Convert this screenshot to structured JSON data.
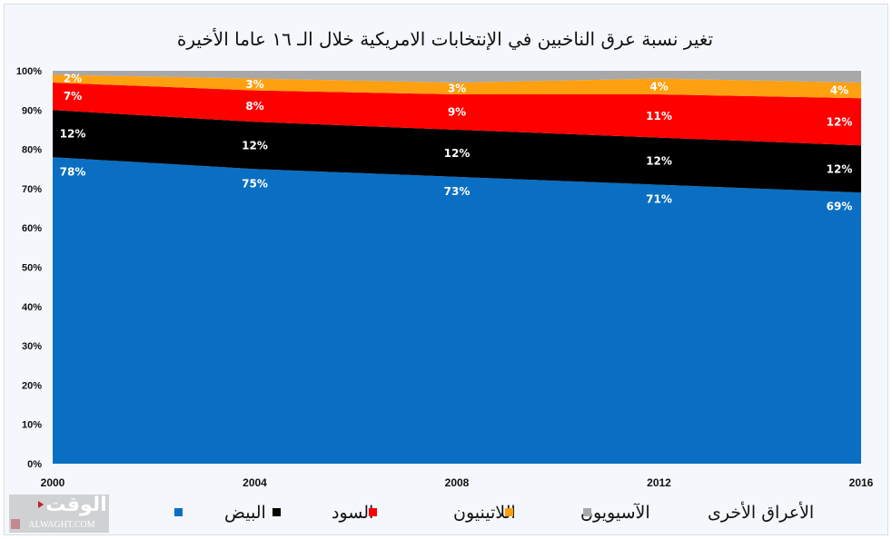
{
  "chart_data": {
    "type": "area",
    "stacked": "percent",
    "title": "تغير نسبة عرق الناخبين في الإنتخابات الامريكية خلال الـ ١٦ عاما الأخيرة",
    "x": [
      "2000",
      "2004",
      "2008",
      "2012",
      "2016"
    ],
    "ylim": [
      0,
      100
    ],
    "yticks": [
      "0%",
      "10%",
      "20%",
      "30%",
      "40%",
      "50%",
      "60%",
      "70%",
      "80%",
      "90%",
      "100%"
    ],
    "grid": false,
    "legend_position": "bottom",
    "series": [
      {
        "name": "البيض",
        "color": "#0a6fc2",
        "values": [
          78,
          75,
          73,
          71,
          69
        ],
        "labels": [
          "78%",
          "75%",
          "73%",
          "71%",
          "69%"
        ]
      },
      {
        "name": "السود",
        "color": "#000000",
        "values": [
          12,
          12,
          12,
          12,
          12
        ],
        "labels": [
          "12%",
          "12%",
          "12%",
          "12%",
          "12%"
        ]
      },
      {
        "name": "اللاتينيون",
        "color": "#ff0000",
        "values": [
          7,
          8,
          9,
          11,
          12
        ],
        "labels": [
          "7%",
          "8%",
          "9%",
          "11%",
          "12%"
        ]
      },
      {
        "name": "الآسيويون",
        "color": "#ffa010",
        "values": [
          2,
          3,
          3,
          4,
          4
        ],
        "labels": [
          "2%",
          "3%",
          "3%",
          "4%",
          "4%"
        ]
      },
      {
        "name": "الأعراق الأخرى",
        "color": "#a8a8a8",
        "values": [
          1,
          2,
          3,
          2,
          3
        ]
      }
    ]
  },
  "logo": {
    "arabic": "الوقت",
    "latin": "ALWAGHT.COM"
  }
}
